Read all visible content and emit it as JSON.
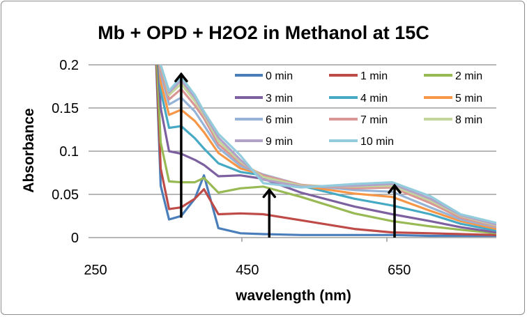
{
  "chart_data": {
    "type": "line",
    "title": "Mb + OPD + H2O2 in Methanol at 15C",
    "xlabel": "wavelength (nm)",
    "ylabel": "Absorbance",
    "xlim": [
      250,
      787
    ],
    "ylim": [
      0,
      0.2
    ],
    "xticks": [
      "250",
      "450",
      "650"
    ],
    "xtick_values": [
      250,
      450,
      650
    ],
    "yticks": [
      "0",
      "0.05",
      "0.1",
      "0.15",
      "0.2"
    ],
    "ytick_values": [
      0,
      0.05,
      0.1,
      0.15,
      0.2
    ],
    "grid": "horizontal",
    "legend_position": "top-right",
    "x": [
      335,
      345,
      356,
      372,
      390,
      402,
      421,
      450,
      480,
      530,
      600,
      650,
      700,
      740,
      787
    ],
    "series": [
      {
        "name": "0 min",
        "color": "#4A7EBB",
        "values": [
          0.3,
          0.06,
          0.021,
          0.025,
          0.045,
          0.072,
          0.011,
          0.005,
          0.004,
          0.003,
          0.003,
          0.003,
          0.002,
          0.002,
          0.002
        ]
      },
      {
        "name": "1 min",
        "color": "#BE4B48",
        "values": [
          0.3,
          0.08,
          0.033,
          0.035,
          0.045,
          0.056,
          0.027,
          0.028,
          0.027,
          0.02,
          0.01,
          0.006,
          0.005,
          0.004,
          0.003
        ]
      },
      {
        "name": "2 min",
        "color": "#98B954",
        "values": [
          0.3,
          0.11,
          0.065,
          0.064,
          0.064,
          0.069,
          0.052,
          0.057,
          0.059,
          0.047,
          0.028,
          0.019,
          0.013,
          0.009,
          0.005
        ]
      },
      {
        "name": "3 min",
        "color": "#7D60A0",
        "values": [
          0.3,
          0.15,
          0.1,
          0.097,
          0.09,
          0.084,
          0.071,
          0.072,
          0.068,
          0.052,
          0.036,
          0.027,
          0.019,
          0.012,
          0.006
        ]
      },
      {
        "name": "4 min",
        "color": "#46AAC5",
        "values": [
          0.3,
          0.17,
          0.127,
          0.129,
          0.115,
          0.103,
          0.086,
          0.076,
          0.072,
          0.06,
          0.045,
          0.037,
          0.027,
          0.016,
          0.008
        ]
      },
      {
        "name": "5 min",
        "color": "#F79646",
        "values": [
          0.3,
          0.18,
          0.142,
          0.148,
          0.135,
          0.122,
          0.098,
          0.08,
          0.073,
          0.06,
          0.051,
          0.047,
          0.031,
          0.019,
          0.01
        ]
      },
      {
        "name": "6 min",
        "color": "#95B3D7",
        "values": [
          0.3,
          0.19,
          0.154,
          0.162,
          0.146,
          0.13,
          0.104,
          0.083,
          0.073,
          0.061,
          0.055,
          0.053,
          0.035,
          0.021,
          0.012
        ]
      },
      {
        "name": "7 min",
        "color": "#D99694",
        "values": [
          0.3,
          0.195,
          0.16,
          0.172,
          0.153,
          0.138,
          0.108,
          0.086,
          0.072,
          0.061,
          0.057,
          0.058,
          0.04,
          0.023,
          0.013
        ]
      },
      {
        "name": "8 min",
        "color": "#C3D69B",
        "values": [
          0.3,
          0.2,
          0.165,
          0.178,
          0.158,
          0.142,
          0.112,
          0.088,
          0.07,
          0.06,
          0.059,
          0.06,
          0.043,
          0.025,
          0.014
        ]
      },
      {
        "name": "9 min",
        "color": "#B3A2C7",
        "values": [
          0.3,
          0.2,
          0.168,
          0.182,
          0.162,
          0.144,
          0.116,
          0.09,
          0.067,
          0.059,
          0.06,
          0.062,
          0.045,
          0.026,
          0.015
        ]
      },
      {
        "name": "10 min",
        "color": "#93CDDD",
        "values": [
          0.3,
          0.2,
          0.17,
          0.186,
          0.165,
          0.146,
          0.12,
          0.095,
          0.063,
          0.058,
          0.062,
          0.064,
          0.048,
          0.027,
          0.017
        ]
      }
    ],
    "annotations": [
      {
        "type": "arrow",
        "x": 372,
        "y_from": 0.023,
        "y_to": 0.19
      },
      {
        "type": "arrow",
        "x": 488,
        "y_from": 0,
        "y_to": 0.056
      },
      {
        "type": "arrow",
        "x": 653,
        "y_from": 0,
        "y_to": 0.061
      }
    ]
  }
}
